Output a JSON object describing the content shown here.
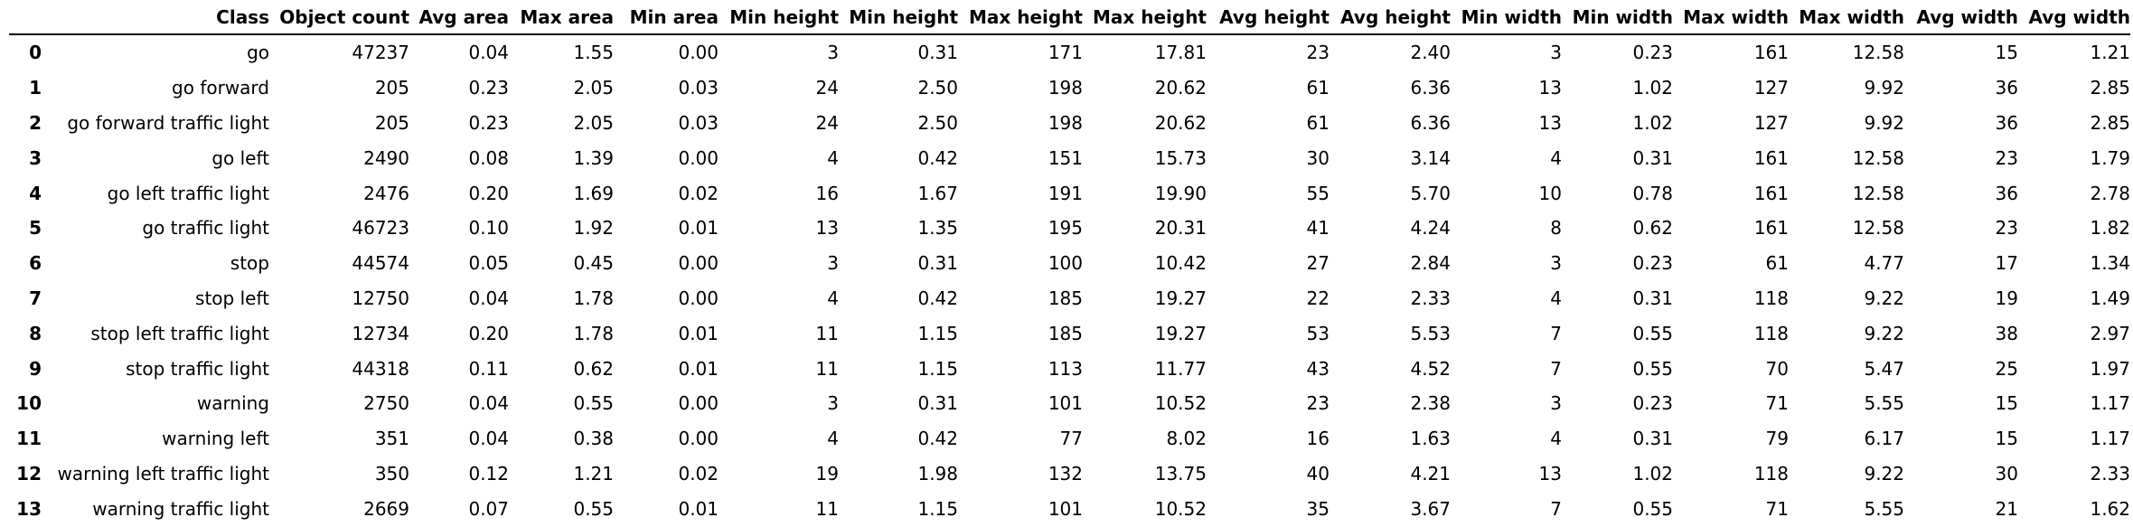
{
  "table": {
    "columns": [
      "",
      "Class",
      "Object count",
      "Avg area",
      "Max area",
      "Min area",
      "Min height",
      "Min height",
      "Max height",
      "Max height",
      "Avg height",
      "Avg height",
      "Min width",
      "Min width",
      "Max width",
      "Max width",
      "Avg width",
      "Avg width"
    ],
    "rows": [
      [
        "0",
        "go",
        "47237",
        "0.04",
        "1.55",
        "0.00",
        "3",
        "0.31",
        "171",
        "17.81",
        "23",
        "2.40",
        "3",
        "0.23",
        "161",
        "12.58",
        "15",
        "1.21"
      ],
      [
        "1",
        "go forward",
        "205",
        "0.23",
        "2.05",
        "0.03",
        "24",
        "2.50",
        "198",
        "20.62",
        "61",
        "6.36",
        "13",
        "1.02",
        "127",
        "9.92",
        "36",
        "2.85"
      ],
      [
        "2",
        "go forward traffic light",
        "205",
        "0.23",
        "2.05",
        "0.03",
        "24",
        "2.50",
        "198",
        "20.62",
        "61",
        "6.36",
        "13",
        "1.02",
        "127",
        "9.92",
        "36",
        "2.85"
      ],
      [
        "3",
        "go left",
        "2490",
        "0.08",
        "1.39",
        "0.00",
        "4",
        "0.42",
        "151",
        "15.73",
        "30",
        "3.14",
        "4",
        "0.31",
        "161",
        "12.58",
        "23",
        "1.79"
      ],
      [
        "4",
        "go left traffic light",
        "2476",
        "0.20",
        "1.69",
        "0.02",
        "16",
        "1.67",
        "191",
        "19.90",
        "55",
        "5.70",
        "10",
        "0.78",
        "161",
        "12.58",
        "36",
        "2.78"
      ],
      [
        "5",
        "go traffic light",
        "46723",
        "0.10",
        "1.92",
        "0.01",
        "13",
        "1.35",
        "195",
        "20.31",
        "41",
        "4.24",
        "8",
        "0.62",
        "161",
        "12.58",
        "23",
        "1.82"
      ],
      [
        "6",
        "stop",
        "44574",
        "0.05",
        "0.45",
        "0.00",
        "3",
        "0.31",
        "100",
        "10.42",
        "27",
        "2.84",
        "3",
        "0.23",
        "61",
        "4.77",
        "17",
        "1.34"
      ],
      [
        "7",
        "stop left",
        "12750",
        "0.04",
        "1.78",
        "0.00",
        "4",
        "0.42",
        "185",
        "19.27",
        "22",
        "2.33",
        "4",
        "0.31",
        "118",
        "9.22",
        "19",
        "1.49"
      ],
      [
        "8",
        "stop left traffic light",
        "12734",
        "0.20",
        "1.78",
        "0.01",
        "11",
        "1.15",
        "185",
        "19.27",
        "53",
        "5.53",
        "7",
        "0.55",
        "118",
        "9.22",
        "38",
        "2.97"
      ],
      [
        "9",
        "stop traffic light",
        "44318",
        "0.11",
        "0.62",
        "0.01",
        "11",
        "1.15",
        "113",
        "11.77",
        "43",
        "4.52",
        "7",
        "0.55",
        "70",
        "5.47",
        "25",
        "1.97"
      ],
      [
        "10",
        "warning",
        "2750",
        "0.04",
        "0.55",
        "0.00",
        "3",
        "0.31",
        "101",
        "10.52",
        "23",
        "2.38",
        "3",
        "0.23",
        "71",
        "5.55",
        "15",
        "1.17"
      ],
      [
        "11",
        "warning left",
        "351",
        "0.04",
        "0.38",
        "0.00",
        "4",
        "0.42",
        "77",
        "8.02",
        "16",
        "1.63",
        "4",
        "0.31",
        "79",
        "6.17",
        "15",
        "1.17"
      ],
      [
        "12",
        "warning left traffic light",
        "350",
        "0.12",
        "1.21",
        "0.02",
        "19",
        "1.98",
        "132",
        "13.75",
        "40",
        "4.21",
        "13",
        "1.02",
        "118",
        "9.22",
        "30",
        "2.33"
      ],
      [
        "13",
        "warning traffic light",
        "2669",
        "0.07",
        "0.55",
        "0.01",
        "11",
        "1.15",
        "101",
        "10.52",
        "35",
        "3.67",
        "7",
        "0.55",
        "71",
        "5.55",
        "21",
        "1.62"
      ]
    ]
  }
}
